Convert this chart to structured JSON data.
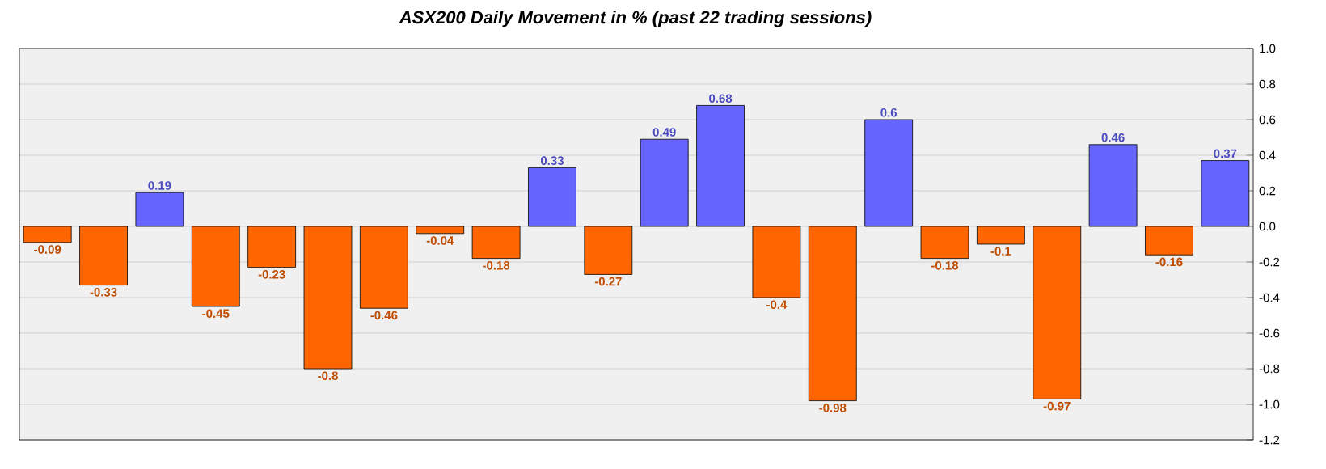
{
  "chart_data": {
    "type": "bar",
    "title": "ASX200 Daily Movement in % (past 22 trading sessions)",
    "categories": [
      null,
      null,
      null,
      null,
      null,
      null,
      null,
      null,
      null,
      null,
      null,
      null,
      null,
      null,
      null,
      null,
      null,
      null,
      null,
      null,
      null,
      null
    ],
    "values": [
      -0.09,
      -0.33,
      0.19,
      -0.45,
      -0.23,
      -0.8,
      -0.46,
      -0.04,
      -0.18,
      0.33,
      -0.27,
      0.49,
      0.68,
      -0.4,
      -0.98,
      0.6,
      -0.18,
      -0.1,
      -0.97,
      0.46,
      -0.16,
      0.37
    ],
    "colors": [
      "#ff6600",
      "#ff6600",
      "#6666ff",
      "#ff6600",
      "#ff6600",
      "#ff6600",
      "#ff6600",
      "#ff6600",
      "#ff6600",
      "#6666ff",
      "#ff6600",
      "#6666ff",
      "#6666ff",
      "#ff6600",
      "#ff6600",
      "#6666ff",
      "#ff6600",
      "#ff6600",
      "#ff6600",
      "#6666ff",
      "#ff6600",
      "#6666ff"
    ],
    "ylim": [
      -1.2,
      1.0
    ],
    "yticks": [
      {
        "value": 1.0,
        "label": "1.0"
      },
      {
        "value": 0.8,
        "label": "0.8"
      },
      {
        "value": 0.6,
        "label": "0.6"
      },
      {
        "value": 0.4,
        "label": "0.4"
      },
      {
        "value": 0.2,
        "label": "0.2"
      },
      {
        "value": 0.0,
        "label": "0.0"
      },
      {
        "value": -0.2,
        "label": "-0.2"
      },
      {
        "value": -0.4,
        "label": "-0.4"
      },
      {
        "value": -0.6,
        "label": "-0.6"
      },
      {
        "value": -0.8,
        "label": "-0.8"
      },
      {
        "value": -1.0,
        "label": "-1.0"
      },
      {
        "value": -1.2,
        "label": "-1.2"
      }
    ],
    "grid": "y",
    "data_labels": true,
    "tick_labels": "y"
  }
}
